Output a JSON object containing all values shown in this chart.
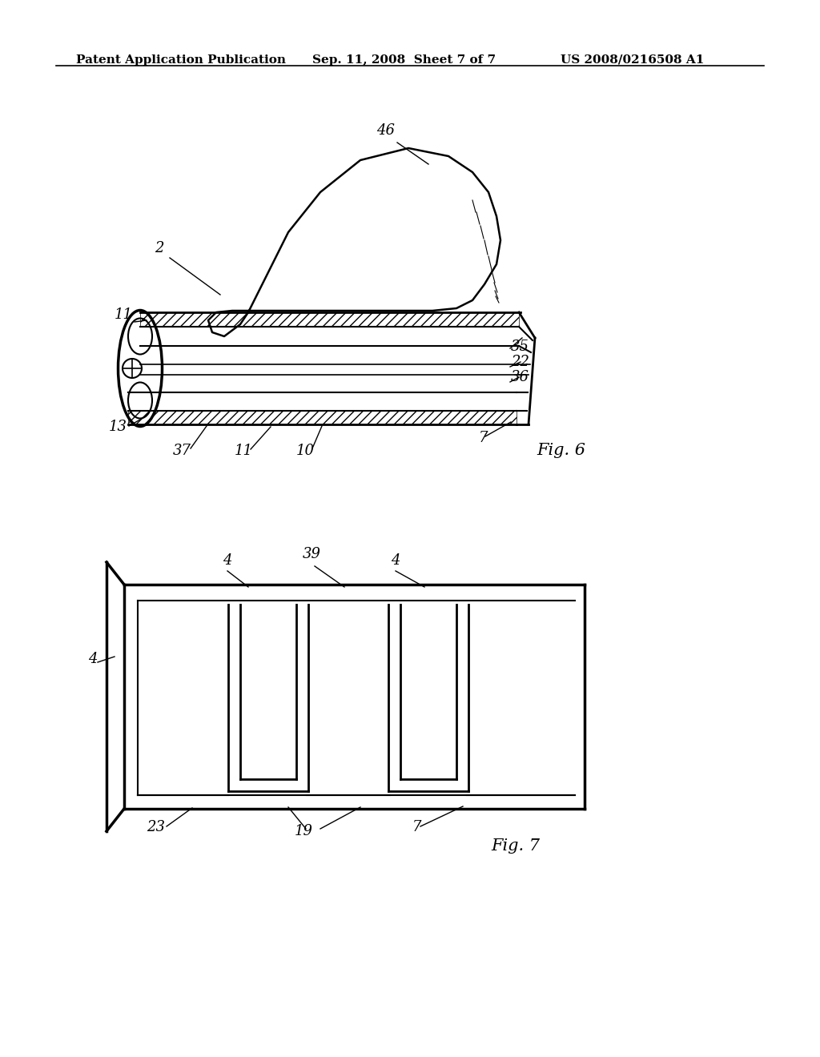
{
  "bg_color": "#ffffff",
  "header_left": "Patent Application Publication",
  "header_center": "Sep. 11, 2008  Sheet 7 of 7",
  "header_right": "US 2008/0216508 A1",
  "fig6_label": "Fig. 6",
  "fig7_label": "Fig. 7",
  "line_color": "#000000",
  "line_width": 1.5,
  "header_fontsize": 11,
  "label_fontsize": 13,
  "italic_fontsize": 14
}
